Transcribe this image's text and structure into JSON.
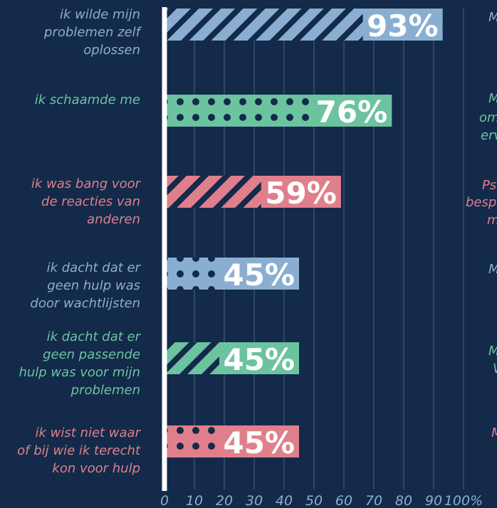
{
  "chart_data": {
    "type": "barh",
    "categories": [
      "ik wilde mijn\nproblemen zelf\noplossen",
      "ik schaamde me",
      "ik was bang voor\nde reacties van\nanderen",
      "ik dacht dat er\ngeen hulp was\ndoor wachtlijsten",
      "ik dacht dat er\ngeen passende\nhulp was voor mijn\nproblemen",
      "ik wist niet waar\nof bij wie ik terecht\nkon voor hulp"
    ],
    "values": [
      93,
      76,
      59,
      45,
      45,
      45
    ],
    "value_labels": [
      "93%",
      "76%",
      "59%",
      "45%",
      "45%",
      "45%"
    ],
    "colors": [
      "#8aaed1",
      "#6cc3a0",
      "#e07f8c",
      "#8aaed1",
      "#6cc3a0",
      "#e07f8c"
    ],
    "patterns": [
      "stripes",
      "dots",
      "stripes",
      "dots",
      "stripes",
      "dots"
    ],
    "xlim": [
      0,
      100
    ],
    "xticks": [
      0,
      10,
      20,
      30,
      40,
      50,
      60,
      70,
      80,
      90,
      {
        "value": 100,
        "label": "100%"
      }
    ],
    "grid": true,
    "annotations": [
      "M",
      "M",
      "om",
      "erv",
      "Ps",
      "besp",
      "m",
      "M",
      "M",
      "V",
      "M"
    ]
  }
}
